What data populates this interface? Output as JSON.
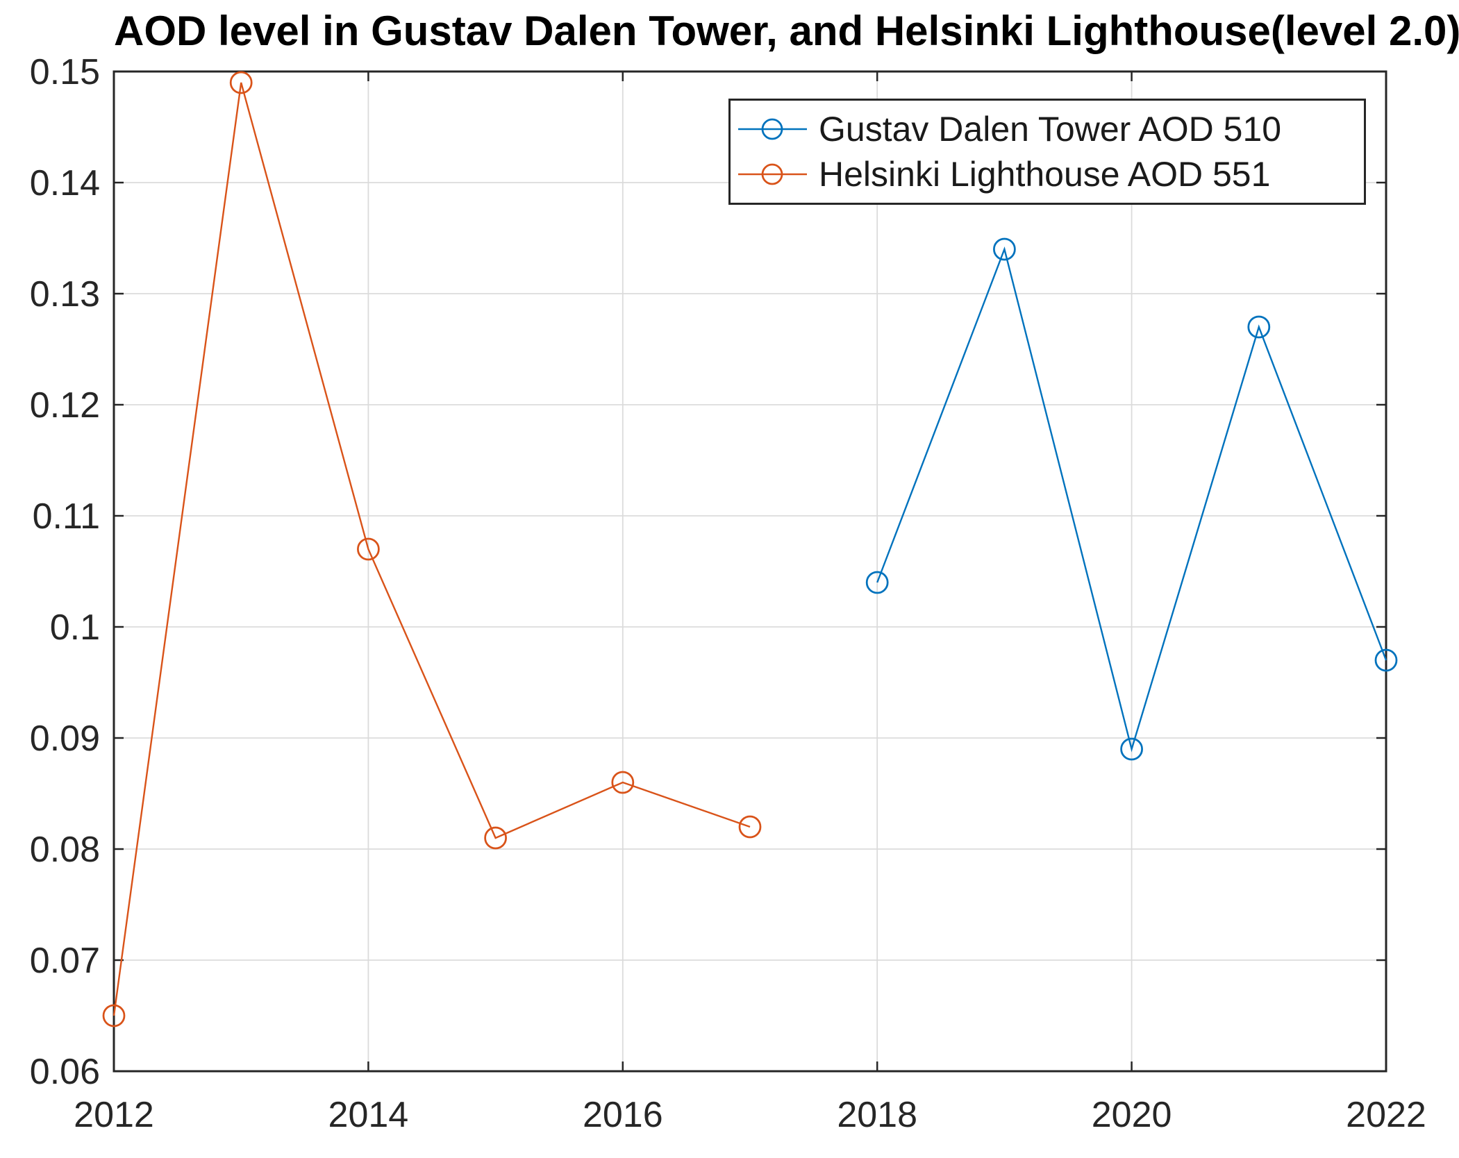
{
  "title": "AOD level in Gustav Dalen Tower, and Helsinki Lighthouse(level 2.0)",
  "colors": {
    "series_blue": "#0072BD",
    "series_orange": "#D95319",
    "axis": "#262626",
    "grid": "#DBDBDB",
    "background": "#FFFFFF",
    "title_text": "#000000"
  },
  "legend": {
    "position": "top-right",
    "entries": [
      {
        "label": "Gustav Dalen Tower AOD 510",
        "color": "#0072BD"
      },
      {
        "label": "Helsinki Lighthouse AOD 551",
        "color": "#D95319"
      }
    ]
  },
  "chart_data": {
    "type": "line",
    "title": "AOD level in Gustav Dalen Tower, and Helsinki Lighthouse(level 2.0)",
    "xlabel": "",
    "ylabel": "",
    "xlim": [
      2012,
      2022
    ],
    "ylim": [
      0.06,
      0.15
    ],
    "grid": true,
    "legend_position": "top-right",
    "x_tick_values": [
      2012,
      2014,
      2016,
      2018,
      2020,
      2022
    ],
    "x_tick_labels": [
      "2012",
      "2014",
      "2016",
      "2018",
      "2020",
      "2022"
    ],
    "y_tick_values": [
      0.06,
      0.07,
      0.08,
      0.09,
      0.1,
      0.11,
      0.12,
      0.13,
      0.14,
      0.15
    ],
    "y_tick_labels": [
      "0.06",
      "0.07",
      "0.08",
      "0.09",
      "0.1",
      "0.11",
      "0.12",
      "0.13",
      "0.14",
      "0.15"
    ],
    "series": [
      {
        "name": "Gustav Dalen Tower AOD 510",
        "color": "#0072BD",
        "marker": "circle",
        "x": [
          2018,
          2019,
          2020,
          2021,
          2022
        ],
        "y": [
          0.104,
          0.134,
          0.089,
          0.127,
          0.097
        ]
      },
      {
        "name": "Helsinki Lighthouse AOD 551",
        "color": "#D95319",
        "marker": "circle",
        "x": [
          2012,
          2013,
          2014,
          2015,
          2016,
          2017
        ],
        "y": [
          0.065,
          0.149,
          0.107,
          0.081,
          0.086,
          0.082
        ]
      }
    ]
  }
}
